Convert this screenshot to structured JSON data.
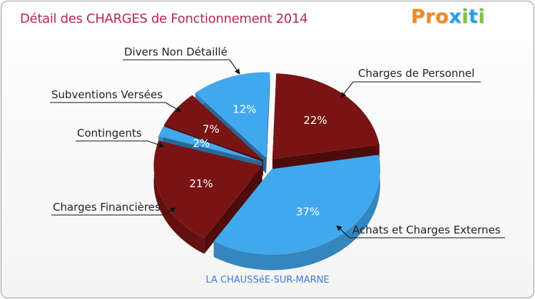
{
  "header": {
    "title": "Détail des CHARGES de Fonctionnement 2014",
    "logo": [
      "P",
      "r",
      "o",
      "x",
      "i",
      "t",
      "i"
    ]
  },
  "colors": {
    "dark_red": "#7a1414",
    "light_blue": "#42a8ee",
    "title": "#b5294a",
    "footer": "#3d7bd9",
    "logo": [
      "#f08a24",
      "#f08a24",
      "#f08a24",
      "#2d9fe3",
      "#7fc242",
      "#2d9fe3",
      "#7fc242"
    ]
  },
  "chart_data": {
    "type": "pie",
    "title": "Détail des CHARGES de Fonctionnement 2014",
    "subtitle": "LA CHAUSSéE-SUR-MARNE",
    "style": "3d-exploded",
    "slices": [
      {
        "label": "Charges de Personnel",
        "percent_label": "22%",
        "value": 22,
        "color": "#7a1414"
      },
      {
        "label": "Achats et Charges Externes",
        "percent_label": "37%",
        "value": 37,
        "color": "#42a8ee"
      },
      {
        "label": "Charges Financières",
        "percent_label": "21%",
        "value": 21,
        "color": "#7a1414"
      },
      {
        "label": "Contingents",
        "percent_label": "2%",
        "value": 2,
        "color": "#42a8ee"
      },
      {
        "label": "Subventions Versées",
        "percent_label": "7%",
        "value": 7,
        "color": "#7a1414"
      },
      {
        "label": "Divers Non Détaillé",
        "percent_label": "12%",
        "value": 12,
        "color": "#42a8ee"
      }
    ]
  },
  "footer": {
    "commune": "LA CHAUSSéE-SUR-MARNE"
  }
}
